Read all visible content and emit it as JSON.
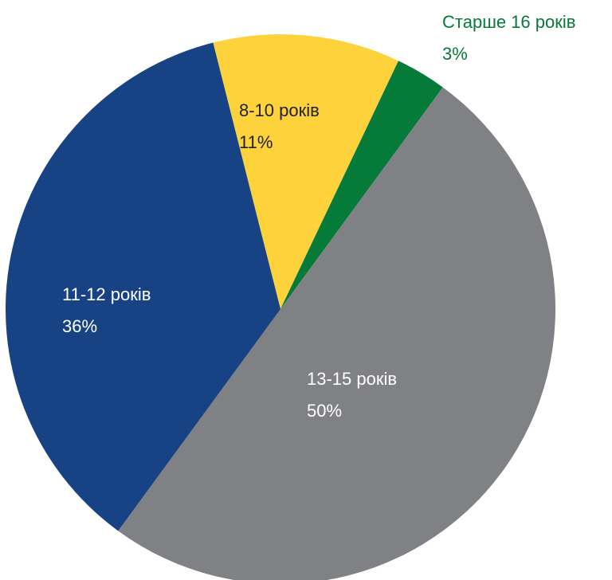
{
  "chart_data": {
    "type": "pie",
    "categories": [
      "8-10 років",
      "Старше 16 років",
      "13-15 років",
      "11-12 років"
    ],
    "values": [
      11,
      3,
      50,
      36
    ],
    "value_labels": [
      "11%",
      "3%",
      "50%",
      "36%"
    ],
    "colors": [
      "#fdd23a",
      "#067a38",
      "#808184",
      "#174384"
    ]
  }
}
